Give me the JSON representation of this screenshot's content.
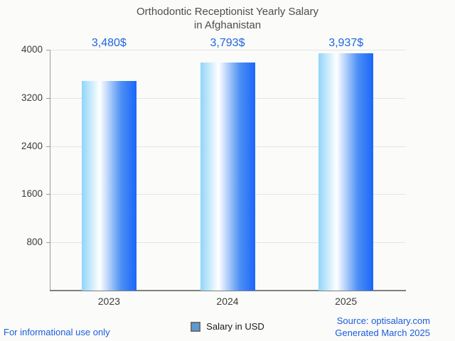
{
  "title": {
    "line1": "Orthodontic Receptionist Yearly Salary",
    "line2": "in Afghanistan"
  },
  "chart_data": {
    "type": "bar",
    "title": "Orthodontic Receptionist Yearly Salary in Afghanistan",
    "categories": [
      "2023",
      "2024",
      "2025"
    ],
    "values": [
      3480,
      3793,
      3937
    ],
    "value_labels": [
      "3,480$",
      "3,793$",
      "3,937$"
    ],
    "xlabel": "",
    "ylabel": "",
    "ylim": [
      0,
      4000
    ],
    "yticks": [
      800,
      1600,
      2400,
      3200,
      4000
    ],
    "grid": true,
    "legend": {
      "label": "Salary in USD",
      "position": "bottom-center",
      "marker_color": "#5b9bd5"
    },
    "bar_gradient": [
      "#90d5f9",
      "#ffffff",
      "#1a66fb"
    ],
    "value_label_color": "#1f66e0"
  },
  "footer": {
    "left": "For informational use only",
    "source": "Source: optisalary.com",
    "generated": "Generated March 2025"
  },
  "colors": {
    "background": "#fbfbf9",
    "title_text": "#4d4d4d",
    "axis_text": "#3c3c3c",
    "gridline": "#e4e4e2",
    "axis_line": "#9b9b9b",
    "baseline": "#808080",
    "accent_blue": "#1b5ddd"
  }
}
